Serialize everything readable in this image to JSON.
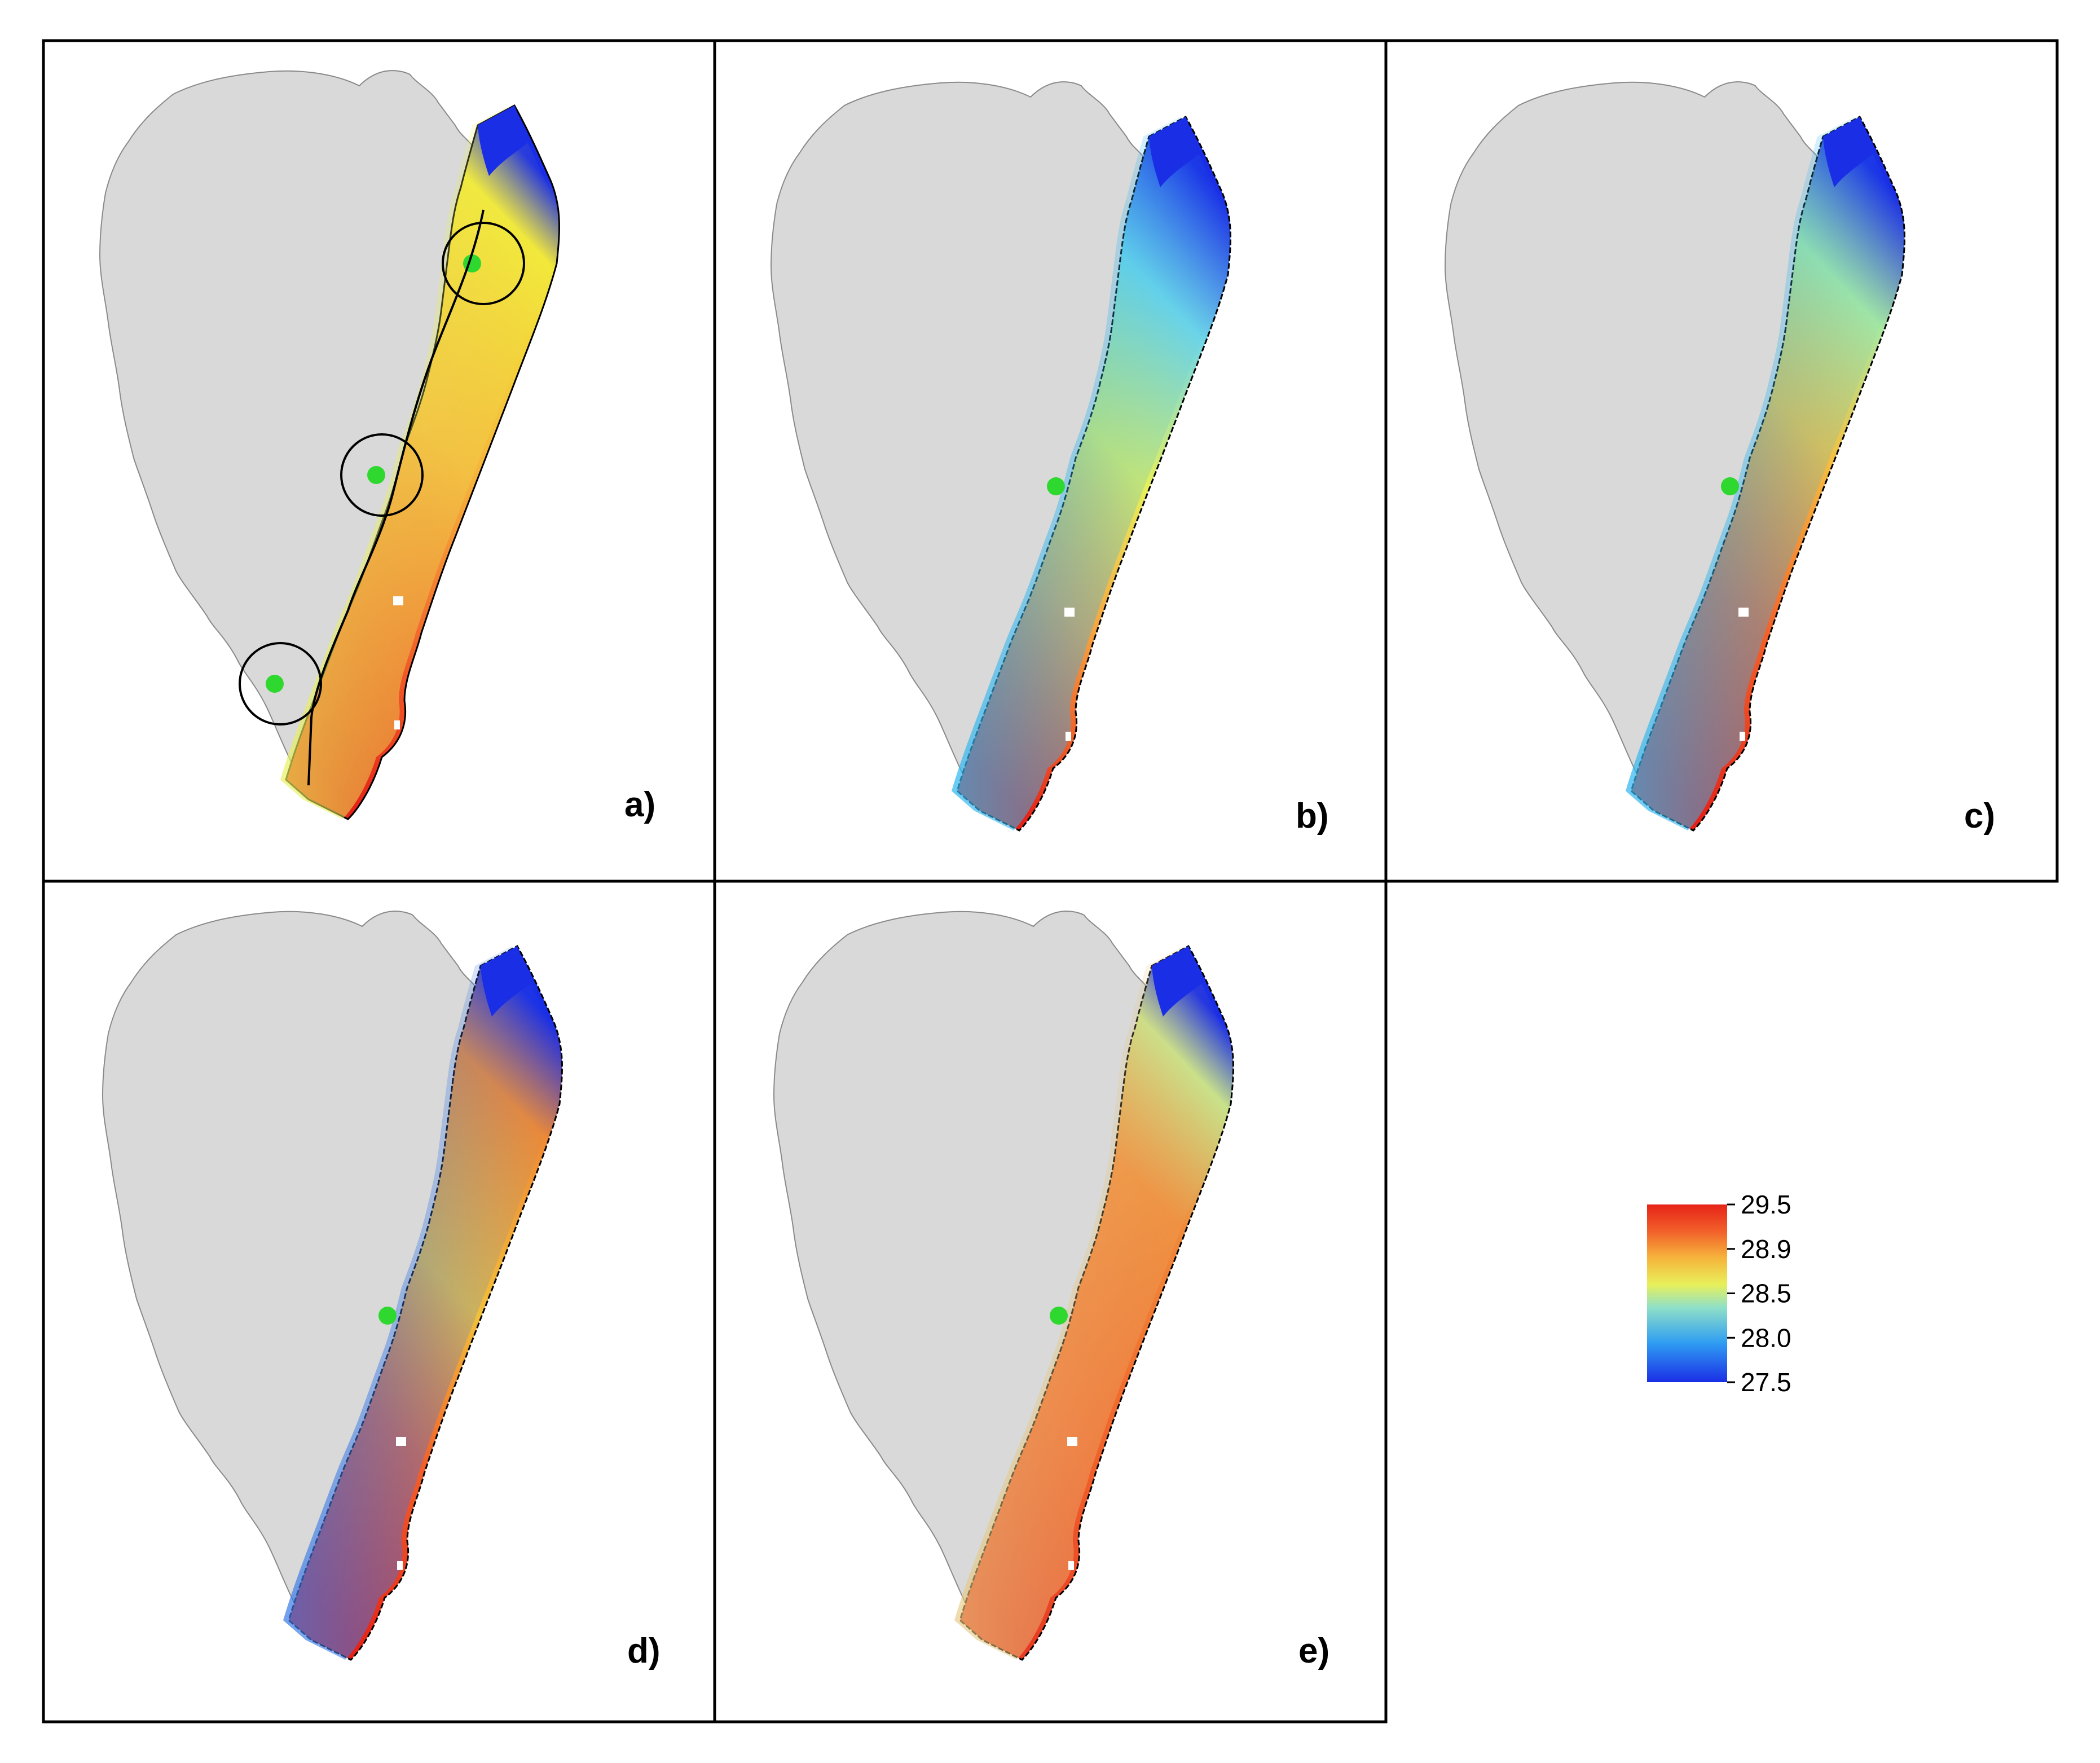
{
  "figure": {
    "panels": [
      {
        "id": "a",
        "label": "a)",
        "stations": 3,
        "field": "a"
      },
      {
        "id": "b",
        "label": "b)",
        "stations": 1,
        "field": "b"
      },
      {
        "id": "c",
        "label": "c)",
        "stations": 1,
        "field": "c"
      },
      {
        "id": "d",
        "label": "d)",
        "stations": 1,
        "field": "d"
      },
      {
        "id": "e",
        "label": "e)",
        "stations": 1,
        "field": "e"
      }
    ],
    "legend": {
      "ticks": [
        "29.5",
        "28.9",
        "28.5",
        "28.0",
        "27.5"
      ],
      "min": 27.5,
      "max": 29.5,
      "colors": [
        "#1a2ee6",
        "#2f9df2",
        "#8fe0c8",
        "#e8f05a",
        "#f6b43c",
        "#f2602a",
        "#e62318"
      ]
    },
    "colors": {
      "land": "#d9d9d9",
      "station_marker": "#2ed82e",
      "frame": "#000000"
    }
  }
}
